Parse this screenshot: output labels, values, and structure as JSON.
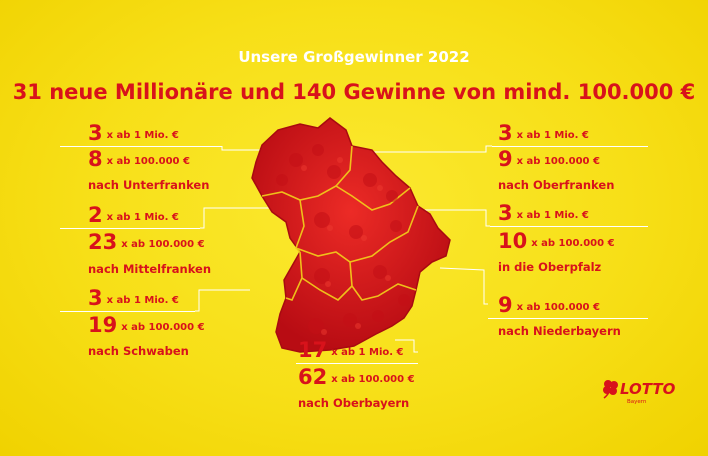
{
  "header": {
    "subtitle": "Unsere Großgewinner 2022",
    "headline": "31 neue Millionäre und 140 Gewinne von mind. 100.000 €"
  },
  "regions": {
    "unterfranken": {
      "mio_count": "3",
      "mio_label": "x ab 1 Mio. €",
      "k_count": "8",
      "k_label": "x ab 100.000 €",
      "name": "nach Unterfranken"
    },
    "mittelfranken": {
      "mio_count": "2",
      "mio_label": "x ab 1 Mio. €",
      "k_count": "23",
      "k_label": "x ab 100.000 €",
      "name": "nach Mittelfranken"
    },
    "schwaben": {
      "mio_count": "3",
      "mio_label": "x  ab 1 Mio. €",
      "k_count": "19",
      "k_label": "x ab 100.000 €",
      "name": "nach Schwaben"
    },
    "oberbayern": {
      "mio_count": "17",
      "mio_label": "x ab 1 Mio. €",
      "k_count": "62",
      "k_label": "x ab 100.000 €",
      "name": "nach Oberbayern"
    },
    "oberfranken": {
      "mio_count": "3",
      "mio_label": "x ab 1 Mio. €",
      "k_count": "9",
      "k_label": "x ab 100.000 €",
      "name": "nach Oberfranken"
    },
    "oberpfalz": {
      "mio_count": "3",
      "mio_label": "x ab 1 Mio. €",
      "k_count": "10",
      "k_label": "x ab 100.000 €",
      "name": "in die Oberpfalz"
    },
    "niederbayern": {
      "k_count": "9",
      "k_label": "x ab 100.000 €",
      "name": "nach Niederbayern"
    }
  },
  "logo": {
    "brand": "LOTTO",
    "region": "Bayern"
  },
  "colors": {
    "background": "#f7e11b",
    "accent": "#d8121b",
    "box": "#ffffff"
  }
}
